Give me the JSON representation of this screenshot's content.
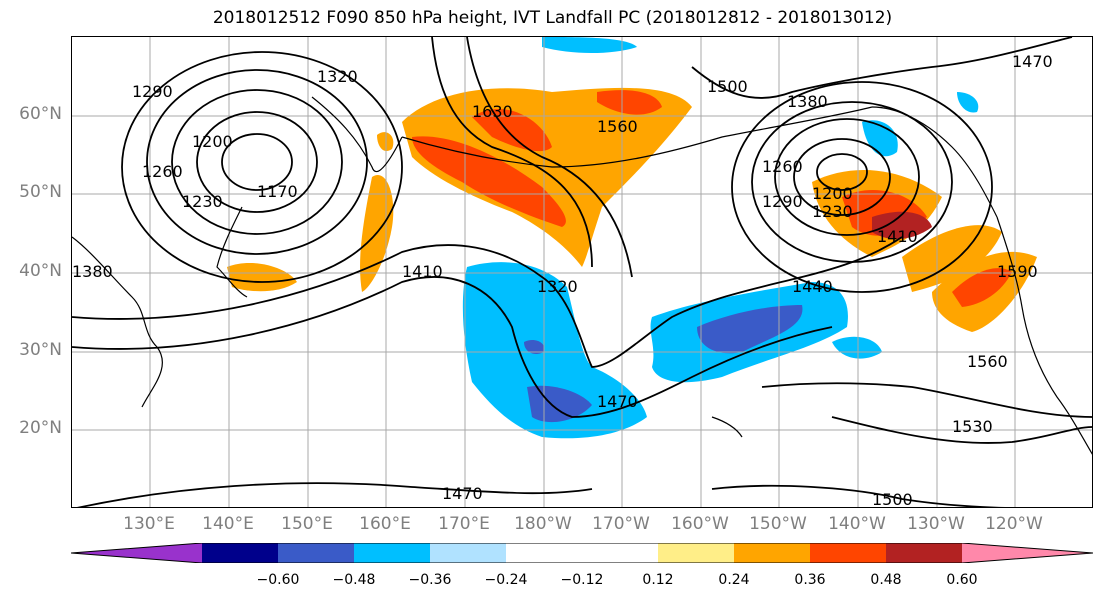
{
  "title": "2018012512 F090 850 hPa height, IVT Landfall PC (2018012812 - 2018013012)",
  "lat_labels": [
    "60°N",
    "50°N",
    "40°N",
    "30°N",
    "20°N"
  ],
  "lon_labels": [
    "130°E",
    "140°E",
    "150°E",
    "160°E",
    "170°E",
    "180°W",
    "170°W",
    "160°W",
    "150°W",
    "140°W",
    "130°W",
    "120°W"
  ],
  "contour_labels": [
    "1320",
    "1290",
    "1260",
    "1230",
    "1200",
    "1170",
    "1630",
    "1560",
    "1500",
    "1380",
    "1260",
    "1290",
    "1200",
    "1230",
    "1410",
    "1410",
    "1320",
    "1440",
    "1470",
    "1380",
    "1590",
    "1560",
    "1530",
    "1470",
    "1500",
    "1470"
  ],
  "colorbar": {
    "colors": [
      "#9932cc",
      "#00008b",
      "#3a5bc8",
      "#00bfff",
      "#b0e2ff",
      "#ffffff",
      "#ffffff",
      "#ffee88",
      "#ffa500",
      "#ff4500",
      "#b22222",
      "#ff88aa"
    ],
    "ticks": [
      "−0.60",
      "−0.48",
      "−0.36",
      "−0.24",
      "−0.12",
      "0.12",
      "0.24",
      "0.36",
      "0.48",
      "0.60"
    ]
  }
}
